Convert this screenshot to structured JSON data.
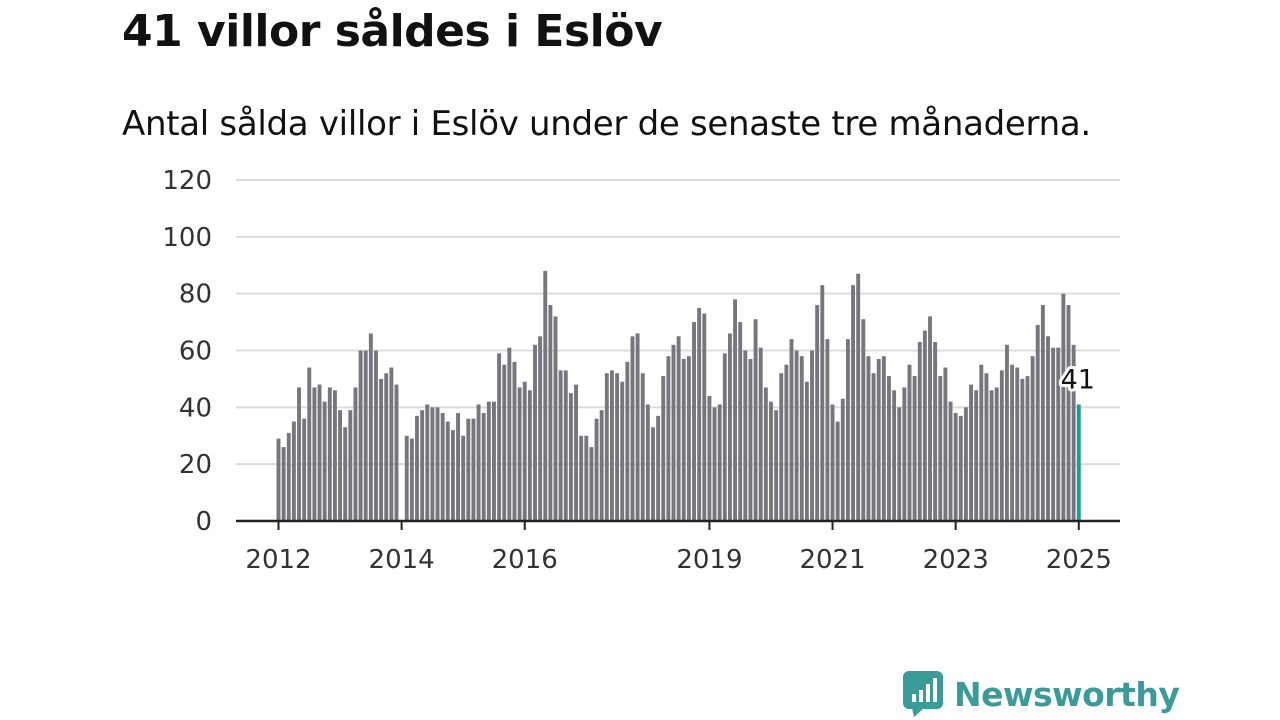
{
  "header": {
    "title": "41 villor såldes i Eslöv",
    "subtitle": "Antal sålda villor i Eslöv under de senaste tre månaderna."
  },
  "brand": {
    "name": "Newsworthy",
    "color": "#3b9b98",
    "icon": "bar-chart-speech-icon"
  },
  "colors": {
    "bar": "#76767e",
    "highlight": "#1a9b96",
    "grid": "#dcdcdc",
    "axis": "#222222"
  },
  "chart_data": {
    "type": "bar",
    "title": "41 villor såldes i Eslöv",
    "subtitle": "Antal sålda villor i Eslöv under de senaste tre månaderna.",
    "ylim": [
      0,
      120
    ],
    "yticks": [
      0,
      20,
      40,
      60,
      80,
      100,
      120
    ],
    "x_tick_labels": [
      "2012",
      "2014",
      "2016",
      "2019",
      "2021",
      "2023",
      "2025"
    ],
    "x_tick_months": [
      "2012-01",
      "2014-01",
      "2016-01",
      "2019-01",
      "2021-01",
      "2023-01",
      "2025-01"
    ],
    "grid": true,
    "start_month": "2012-01",
    "values": [
      29,
      26,
      31,
      35,
      47,
      36,
      54,
      47,
      48,
      42,
      47,
      46,
      39,
      33,
      39,
      47,
      60,
      60,
      66,
      60,
      50,
      52,
      54,
      48,
      null,
      30,
      29,
      37,
      39,
      41,
      40,
      40,
      38,
      35,
      32,
      38,
      30,
      36,
      36,
      41,
      38,
      42,
      42,
      59,
      55,
      61,
      56,
      47,
      49,
      46,
      62,
      65,
      88,
      76,
      72,
      53,
      53,
      45,
      48,
      30,
      30,
      26,
      36,
      39,
      52,
      53,
      52,
      49,
      56,
      65,
      66,
      52,
      41,
      33,
      37,
      51,
      58,
      62,
      65,
      57,
      58,
      70,
      75,
      73,
      44,
      40,
      41,
      59,
      66,
      78,
      70,
      60,
      57,
      71,
      61,
      47,
      42,
      39,
      52,
      55,
      64,
      60,
      58,
      49,
      60,
      76,
      83,
      64,
      41,
      35,
      43,
      64,
      83,
      87,
      71,
      58,
      52,
      57,
      58,
      51,
      46,
      40,
      47,
      55,
      51,
      63,
      67,
      72,
      63,
      51,
      54,
      42,
      38,
      37,
      40,
      48,
      46,
      55,
      52,
      46,
      47,
      53,
      62,
      55,
      54,
      50,
      51,
      58,
      69,
      76,
      65,
      61,
      61,
      80,
      76,
      62,
      41
    ],
    "highlight_index": 156,
    "highlight_label": "41"
  }
}
